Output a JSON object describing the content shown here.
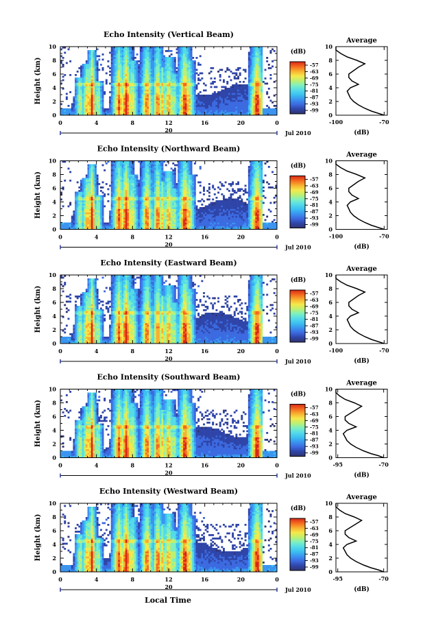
{
  "figure": {
    "xlabel": "Local Time"
  },
  "colorscale": [
    "#31336f",
    "#2f45a8",
    "#3c6ae0",
    "#3a94f0",
    "#3cc0f0",
    "#55dbe8",
    "#7ef0c0",
    "#bff070",
    "#f6e84a",
    "#f8b030",
    "#f56a1e",
    "#d62818"
  ],
  "chart_data": [
    {
      "type": "heatmap",
      "title": "Echo Intensity (Vertical Beam)",
      "ylabel": "Height (km)",
      "x_ticks": [
        "0",
        "4",
        "8",
        "12",
        "16",
        "20",
        "0"
      ],
      "y_ticks": [
        "0",
        "2",
        "4",
        "6",
        "8",
        "10"
      ],
      "xlim": [
        0,
        24
      ],
      "ylim": [
        0,
        10
      ],
      "date_ticks": [
        "20"
      ],
      "date_label": "Jul 2010",
      "colorbar": {
        "title": "(dB)",
        "ticks": [
          "-57",
          "-63",
          "-69",
          "-75",
          "-81",
          "-87",
          "-93",
          "-99"
        ]
      },
      "profile": {
        "title": "Average",
        "xlabel": "(dB)",
        "x_ticks": [
          "-100",
          "-70"
        ],
        "xlim": [
          -100,
          -68
        ],
        "y_ticks": [
          "0",
          "2",
          "4",
          "6",
          "8",
          "10"
        ],
        "heights": [
          0,
          0.3,
          0.6,
          1,
          1.5,
          2,
          2.5,
          3,
          3.5,
          4,
          4.5,
          5,
          5.5,
          6,
          6.5,
          7,
          7.5,
          8,
          8.5,
          9,
          9.5,
          10
        ],
        "values": [
          -70,
          -74,
          -78,
          -82,
          -86,
          -89,
          -91,
          -92,
          -93,
          -91,
          -86,
          -90,
          -92,
          -92,
          -89,
          -86,
          -82,
          -87,
          -93,
          -97,
          -100,
          -100
        ]
      }
    },
    {
      "type": "heatmap",
      "title": "Echo Intensity (Northward Beam)",
      "ylabel": "Height (km)",
      "x_ticks": [
        "0",
        "4",
        "8",
        "12",
        "16",
        "20",
        "0"
      ],
      "y_ticks": [
        "0",
        "2",
        "4",
        "6",
        "8",
        "10"
      ],
      "xlim": [
        0,
        24
      ],
      "ylim": [
        0,
        10
      ],
      "date_ticks": [
        "20"
      ],
      "date_label": "Jul 2010",
      "colorbar": {
        "title": "(dB)",
        "ticks": [
          "-57",
          "-63",
          "-69",
          "-75",
          "-81",
          "-87",
          "-93",
          "-99"
        ]
      },
      "profile": {
        "title": "Average",
        "xlabel": "(dB)",
        "x_ticks": [
          "-100",
          "-70"
        ],
        "xlim": [
          -100,
          -68
        ],
        "y_ticks": [
          "0",
          "2",
          "4",
          "6",
          "8",
          "10"
        ],
        "heights": [
          0,
          0.3,
          0.6,
          1,
          1.5,
          2,
          2.5,
          3,
          3.5,
          4,
          4.5,
          5,
          5.5,
          6,
          6.5,
          7,
          7.5,
          8,
          8.5,
          9,
          9.5,
          10
        ],
        "values": [
          -70,
          -74,
          -78,
          -82,
          -86,
          -89,
          -91,
          -92,
          -93,
          -91,
          -86,
          -90,
          -92,
          -92,
          -89,
          -86,
          -82,
          -87,
          -93,
          -97,
          -100,
          -100
        ]
      }
    },
    {
      "type": "heatmap",
      "title": "Echo Intensity (Eastward Beam)",
      "ylabel": "Height (km)",
      "x_ticks": [
        "0",
        "4",
        "8",
        "12",
        "16",
        "20",
        "0"
      ],
      "y_ticks": [
        "0",
        "2",
        "4",
        "6",
        "8",
        "10"
      ],
      "xlim": [
        0,
        24
      ],
      "ylim": [
        0,
        10
      ],
      "date_ticks": [
        "20"
      ],
      "date_label": "Jul 2010",
      "colorbar": {
        "title": "(dB)",
        "ticks": [
          "-57",
          "-63",
          "-69",
          "-75",
          "-81",
          "-87",
          "-93",
          "-99"
        ]
      },
      "profile": {
        "title": "Average",
        "xlabel": "(dB)",
        "x_ticks": [
          "-100",
          "-70"
        ],
        "xlim": [
          -100,
          -68
        ],
        "y_ticks": [
          "0",
          "2",
          "4",
          "6",
          "8",
          "10"
        ],
        "heights": [
          0,
          0.3,
          0.6,
          1,
          1.5,
          2,
          2.5,
          3,
          3.5,
          4,
          4.5,
          5,
          5.5,
          6,
          6.5,
          7,
          7.5,
          8,
          8.5,
          9,
          9.5,
          10
        ],
        "values": [
          -70,
          -74,
          -78,
          -82,
          -86,
          -89,
          -91,
          -92,
          -93,
          -91,
          -86,
          -90,
          -92,
          -92,
          -89,
          -86,
          -82,
          -87,
          -93,
          -97,
          -100,
          -100
        ]
      }
    },
    {
      "type": "heatmap",
      "title": "Echo Intensity (Southward Beam)",
      "ylabel": "Height (km)",
      "x_ticks": [
        "0",
        "4",
        "8",
        "12",
        "16",
        "20",
        "0"
      ],
      "y_ticks": [
        "0",
        "2",
        "4",
        "6",
        "8",
        "10"
      ],
      "xlim": [
        0,
        24
      ],
      "ylim": [
        0,
        10
      ],
      "date_ticks": [
        "20"
      ],
      "date_label": "Jul 2010",
      "colorbar": {
        "title": "(dB)",
        "ticks": [
          "-57",
          "-63",
          "-69",
          "-75",
          "-81",
          "-87",
          "-93",
          "-99"
        ]
      },
      "profile": {
        "title": "Average",
        "xlabel": "(dB)",
        "x_ticks": [
          "-95",
          "-70"
        ],
        "xlim": [
          -96,
          -68
        ],
        "y_ticks": [
          "0",
          "2",
          "4",
          "6",
          "8",
          "10"
        ],
        "heights": [
          0,
          0.3,
          0.6,
          1,
          1.5,
          2,
          2.5,
          3,
          3.5,
          4,
          4.5,
          5,
          5.5,
          6,
          6.5,
          7,
          7.5,
          8,
          8.5,
          9,
          9.5,
          10
        ],
        "values": [
          -70,
          -73,
          -77,
          -81,
          -85,
          -88,
          -90,
          -91,
          -92,
          -90,
          -85,
          -89,
          -91,
          -91,
          -88,
          -85,
          -82,
          -86,
          -91,
          -94,
          -96,
          -96
        ]
      }
    },
    {
      "type": "heatmap",
      "title": "Echo Intensity (Westward Beam)",
      "ylabel": "Height (km)",
      "x_ticks": [
        "0",
        "4",
        "8",
        "12",
        "16",
        "20",
        "0"
      ],
      "y_ticks": [
        "0",
        "2",
        "4",
        "6",
        "8",
        "10"
      ],
      "xlim": [
        0,
        24
      ],
      "ylim": [
        0,
        10
      ],
      "date_ticks": [
        "20"
      ],
      "date_label": "Jul 2010",
      "colorbar": {
        "title": "(dB)",
        "ticks": [
          "-57",
          "-63",
          "-69",
          "-75",
          "-81",
          "-87",
          "-93",
          "-99"
        ]
      },
      "profile": {
        "title": "Average",
        "xlabel": "(dB)",
        "x_ticks": [
          "-95",
          "-70"
        ],
        "xlim": [
          -96,
          -68
        ],
        "y_ticks": [
          "0",
          "2",
          "4",
          "6",
          "8",
          "10"
        ],
        "heights": [
          0,
          0.3,
          0.6,
          1,
          1.5,
          2,
          2.5,
          3,
          3.5,
          4,
          4.5,
          5,
          5.5,
          6,
          6.5,
          7,
          7.5,
          8,
          8.5,
          9,
          9.5,
          10
        ],
        "values": [
          -70,
          -73,
          -77,
          -81,
          -85,
          -88,
          -90,
          -91,
          -92,
          -90,
          -85,
          -89,
          -91,
          -91,
          -88,
          -85,
          -82,
          -86,
          -91,
          -94,
          -96,
          -96
        ]
      }
    }
  ]
}
